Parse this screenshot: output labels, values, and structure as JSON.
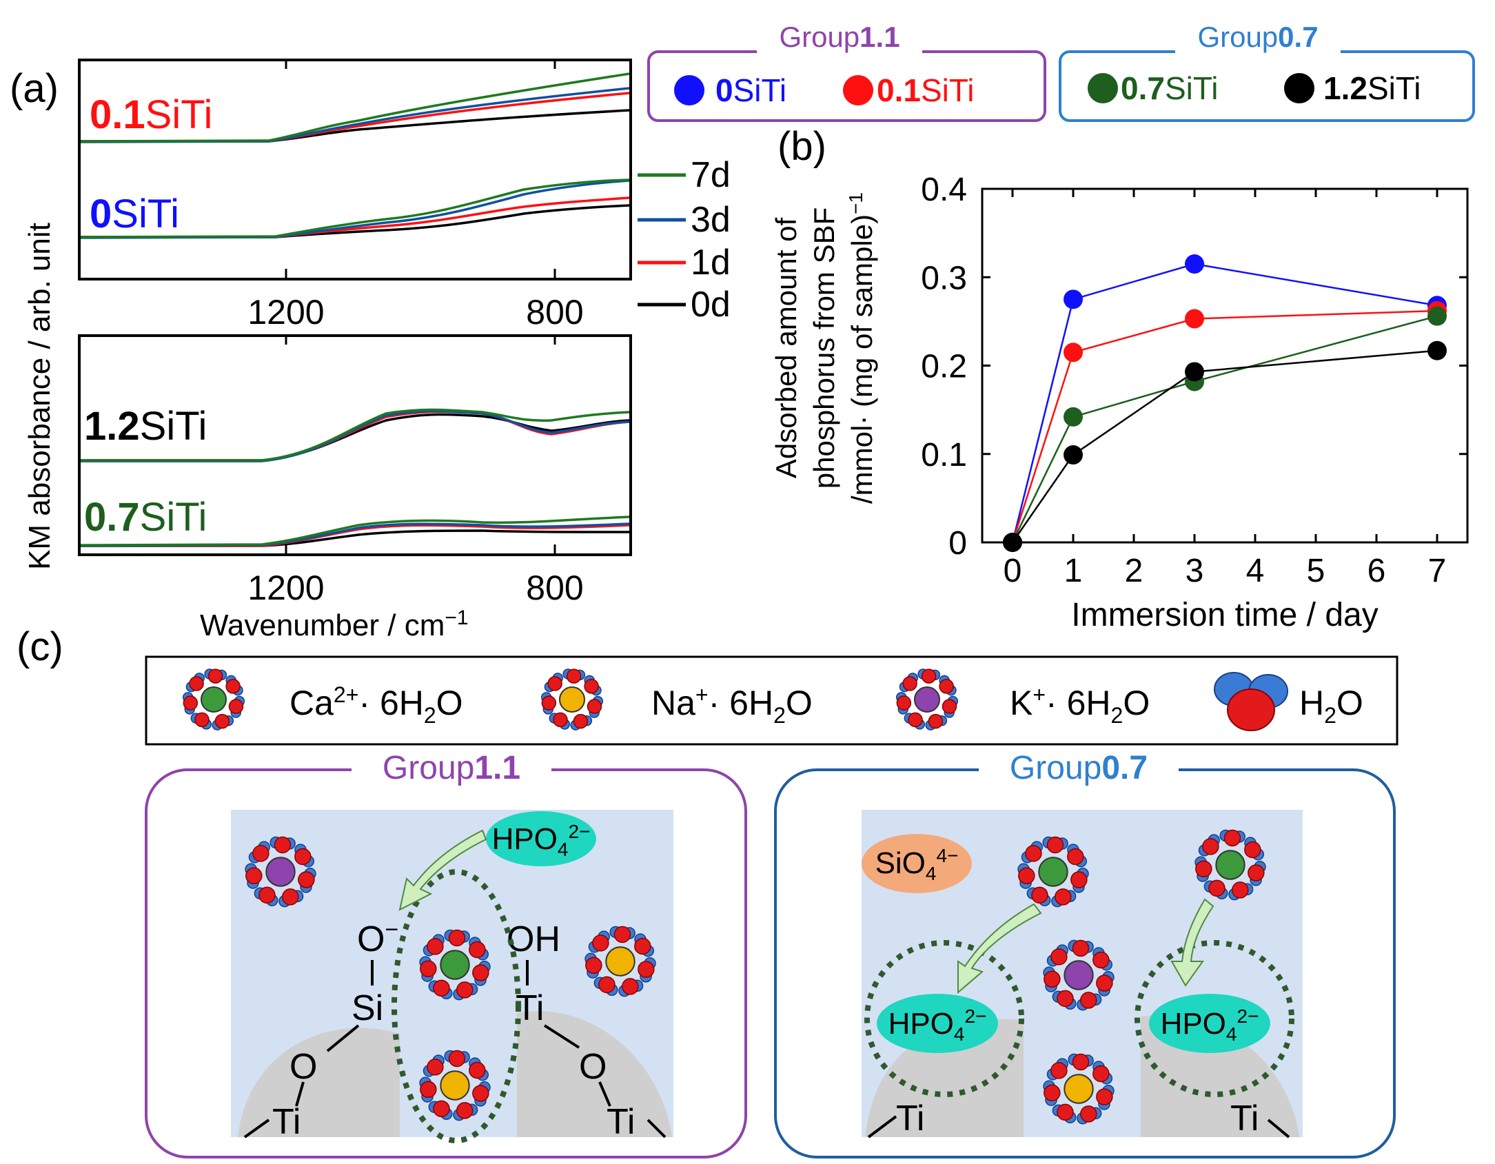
{
  "panel_labels": {
    "a": "(a)",
    "b": "(b)",
    "c": "(c)"
  },
  "legend_groups": {
    "group11": {
      "prefix": "Group",
      "suffix": "1.1",
      "color": "#8E44AD",
      "items": [
        {
          "num": "0",
          "rest": "SiTi",
          "color": "#1010FF"
        },
        {
          "num": "0.1",
          "rest": "SiTi",
          "color": "#FF1010"
        }
      ]
    },
    "group07": {
      "prefix": "Group",
      "suffix": "0.7",
      "color": "#2F80D0",
      "items": [
        {
          "num": "0.7",
          "rest": "SiTi",
          "color": "#1E5E1E"
        },
        {
          "num": "1.2",
          "rest": "SiTi",
          "color": "#000000"
        }
      ]
    }
  },
  "spectra": {
    "ylabel": "KM absorbance  / arb. unit",
    "xlabel": "Wavenumber  / cm",
    "xlabel_sup": "−1",
    "x_ticks": [
      "1200",
      "800"
    ],
    "time_legend": [
      {
        "label": "7d",
        "color": "#1E7A1E"
      },
      {
        "label": "3d",
        "color": "#1050A0"
      },
      {
        "label": "1d",
        "color": "#FF1010"
      },
      {
        "label": "0d",
        "color": "#000000"
      }
    ],
    "sample_labels": [
      {
        "num": "0.1",
        "rest": "SiTi",
        "color": "#FF1010"
      },
      {
        "num": "0",
        "rest": "SiTi",
        "color": "#1010FF"
      },
      {
        "num": "1.2",
        "rest": "SiTi",
        "color": "#000000"
      },
      {
        "num": "0.7",
        "rest": "SiTi",
        "color": "#1E5E1E"
      }
    ]
  },
  "chart_data": {
    "type": "line",
    "title": "",
    "xlabel": "Immersion time / day",
    "ylabel_lines": [
      "Adsorbed amount of",
      "phosphorus from SBF",
      "/mmol· (mg of sample)"
    ],
    "ylabel_sup": "−1",
    "xlim": [
      -0.5,
      7.5
    ],
    "ylim": [
      0,
      0.4
    ],
    "x_ticks": [
      "0",
      "1",
      "2",
      "3",
      "4",
      "5",
      "6",
      "7"
    ],
    "y_ticks": [
      "0",
      "0.1",
      "0.2",
      "0.3",
      "0.4"
    ],
    "x": [
      0,
      1,
      3,
      7
    ],
    "series": [
      {
        "name": "0SiTi",
        "color": "#1010FF",
        "values": [
          0,
          0.275,
          0.315,
          0.268
        ]
      },
      {
        "name": "0.1SiTi",
        "color": "#FF1010",
        "values": [
          0,
          0.215,
          0.253,
          0.262
        ]
      },
      {
        "name": "0.7SiTi",
        "color": "#1E5E1E",
        "values": [
          0,
          0.142,
          0.182,
          0.256
        ]
      },
      {
        "name": "1.2SiTi",
        "color": "#000000",
        "values": [
          0,
          0.099,
          0.193,
          0.217
        ]
      }
    ]
  },
  "schematic": {
    "legend": [
      {
        "text": "Ca",
        "sup": "2+",
        "tail": "· 6H",
        "sub": "2",
        "end": "O"
      },
      {
        "text": "Na",
        "sup": "+",
        "tail": "· 6H",
        "sub": "2",
        "end": "O"
      },
      {
        "text": "K",
        "sup": "+",
        "tail": "· 6H",
        "sub": "2",
        "end": "O"
      },
      {
        "text": "H",
        "sub": "2",
        "end": "O"
      }
    ],
    "left_title": {
      "prefix": "Group",
      "suffix": "1.1",
      "color": "#8E44AD"
    },
    "right_title": {
      "prefix": "Group",
      "suffix": "0.7",
      "color": "#2F80D0"
    },
    "hpo4": {
      "base": "HPO",
      "sub": "4",
      "sup": "2−"
    },
    "sio4": {
      "base": "SiO",
      "sub": "4",
      "sup": "4−"
    },
    "atoms": {
      "o_minus": "O",
      "o_minus_sup": "−",
      "oh": "OH",
      "si": "Si",
      "ti": "Ti",
      "o": "O"
    },
    "colors": {
      "ca": "#3C9A3C",
      "na": "#F0B400",
      "k": "#8E44AD",
      "bg": "#D4E1F2",
      "surface": "#CFCFCF",
      "hpo4": "#1FD6C0",
      "sio4": "#F4A97A"
    }
  }
}
